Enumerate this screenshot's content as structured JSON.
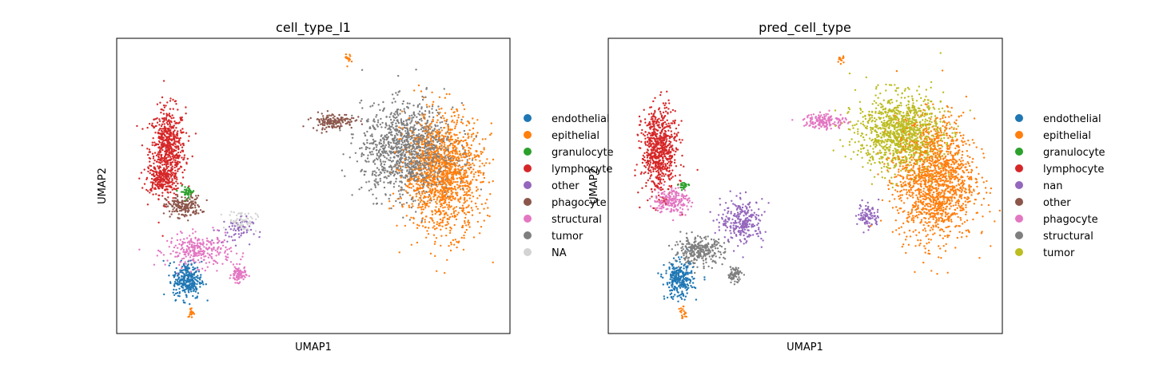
{
  "chart_data": [
    {
      "type": "scatter",
      "title": "cell_type_l1",
      "xlabel": "UMAP1",
      "ylabel": "UMAP2",
      "grid": false,
      "ticks": false,
      "legend_position": "right, outside",
      "legend": [
        {
          "name": "endothelial",
          "color": "#1f77b4"
        },
        {
          "name": "epithelial",
          "color": "#ff7f0e"
        },
        {
          "name": "granulocyte",
          "color": "#2ca02c"
        },
        {
          "name": "lymphocyte",
          "color": "#d62728"
        },
        {
          "name": "other",
          "color": "#9467bd"
        },
        {
          "name": "phagocyte",
          "color": "#8c564b"
        },
        {
          "name": "structural",
          "color": "#e377c2"
        },
        {
          "name": "tumor",
          "color": "#7f7f7f"
        },
        {
          "name": "NA",
          "color": "#d3d3d3"
        }
      ],
      "clusters": [
        {
          "label": "lymphocyte",
          "cx": 0.13,
          "cy": 0.62,
          "rx": 0.05,
          "ry": 0.16,
          "n": 650
        },
        {
          "label": "lymphocyte",
          "cx": 0.11,
          "cy": 0.52,
          "rx": 0.04,
          "ry": 0.05,
          "n": 150
        },
        {
          "label": "phagocyte",
          "cx": 0.17,
          "cy": 0.43,
          "rx": 0.05,
          "ry": 0.04,
          "n": 180
        },
        {
          "label": "granulocyte",
          "cx": 0.18,
          "cy": 0.48,
          "rx": 0.02,
          "ry": 0.02,
          "n": 40
        },
        {
          "label": "structural",
          "cx": 0.21,
          "cy": 0.28,
          "rx": 0.09,
          "ry": 0.06,
          "n": 280
        },
        {
          "label": "structural",
          "cx": 0.31,
          "cy": 0.2,
          "rx": 0.02,
          "ry": 0.03,
          "n": 90
        },
        {
          "label": "NA",
          "cx": 0.32,
          "cy": 0.38,
          "rx": 0.04,
          "ry": 0.04,
          "n": 80
        },
        {
          "label": "other",
          "cx": 0.3,
          "cy": 0.35,
          "rx": 0.05,
          "ry": 0.05,
          "n": 60
        },
        {
          "label": "endothelial",
          "cx": 0.18,
          "cy": 0.18,
          "rx": 0.04,
          "ry": 0.07,
          "n": 280
        },
        {
          "label": "epithelial",
          "cx": 0.19,
          "cy": 0.07,
          "rx": 0.01,
          "ry": 0.02,
          "n": 20
        },
        {
          "label": "phagocyte",
          "cx": 0.55,
          "cy": 0.72,
          "rx": 0.06,
          "ry": 0.03,
          "n": 150
        },
        {
          "label": "tumor",
          "cx": 0.74,
          "cy": 0.62,
          "rx": 0.13,
          "ry": 0.17,
          "n": 1200
        },
        {
          "label": "epithelial",
          "cx": 0.83,
          "cy": 0.54,
          "rx": 0.11,
          "ry": 0.22,
          "n": 1400
        },
        {
          "label": "epithelial",
          "cx": 0.59,
          "cy": 0.93,
          "rx": 0.01,
          "ry": 0.02,
          "n": 15
        }
      ]
    },
    {
      "type": "scatter",
      "title": "pred_cell_type",
      "xlabel": "UMAP1",
      "ylabel": "UMAP2",
      "grid": false,
      "ticks": false,
      "legend_position": "right, outside",
      "legend": [
        {
          "name": "endothelial",
          "color": "#1f77b4"
        },
        {
          "name": "epithelial",
          "color": "#ff7f0e"
        },
        {
          "name": "granulocyte",
          "color": "#2ca02c"
        },
        {
          "name": "lymphocyte",
          "color": "#d62728"
        },
        {
          "name": "nan",
          "color": "#9467bd"
        },
        {
          "name": "other",
          "color": "#8c564b"
        },
        {
          "name": "phagocyte",
          "color": "#e377c2"
        },
        {
          "name": "structural",
          "color": "#7f7f7f"
        },
        {
          "name": "tumor",
          "color": "#bcbd22"
        }
      ],
      "clusters": [
        {
          "label": "lymphocyte",
          "cx": 0.13,
          "cy": 0.62,
          "rx": 0.05,
          "ry": 0.16,
          "n": 700
        },
        {
          "label": "phagocyte",
          "cx": 0.16,
          "cy": 0.45,
          "rx": 0.05,
          "ry": 0.05,
          "n": 200
        },
        {
          "label": "granulocyte",
          "cx": 0.19,
          "cy": 0.5,
          "rx": 0.015,
          "ry": 0.015,
          "n": 25
        },
        {
          "label": "structural",
          "cx": 0.23,
          "cy": 0.28,
          "rx": 0.07,
          "ry": 0.05,
          "n": 300
        },
        {
          "label": "nan",
          "cx": 0.34,
          "cy": 0.38,
          "rx": 0.06,
          "ry": 0.08,
          "n": 260
        },
        {
          "label": "structural",
          "cx": 0.32,
          "cy": 0.2,
          "rx": 0.02,
          "ry": 0.03,
          "n": 70
        },
        {
          "label": "endothelial",
          "cx": 0.18,
          "cy": 0.18,
          "rx": 0.04,
          "ry": 0.07,
          "n": 280
        },
        {
          "label": "epithelial",
          "cx": 0.19,
          "cy": 0.07,
          "rx": 0.01,
          "ry": 0.02,
          "n": 20
        },
        {
          "label": "phagocyte",
          "cx": 0.55,
          "cy": 0.72,
          "rx": 0.06,
          "ry": 0.03,
          "n": 160
        },
        {
          "label": "tumor",
          "cx": 0.74,
          "cy": 0.68,
          "rx": 0.12,
          "ry": 0.14,
          "n": 1100
        },
        {
          "label": "nan",
          "cx": 0.66,
          "cy": 0.4,
          "rx": 0.03,
          "ry": 0.05,
          "n": 90
        },
        {
          "label": "epithelial",
          "cx": 0.83,
          "cy": 0.52,
          "rx": 0.11,
          "ry": 0.23,
          "n": 1500
        },
        {
          "label": "epithelial",
          "cx": 0.59,
          "cy": 0.93,
          "rx": 0.01,
          "ry": 0.02,
          "n": 15
        }
      ]
    }
  ]
}
